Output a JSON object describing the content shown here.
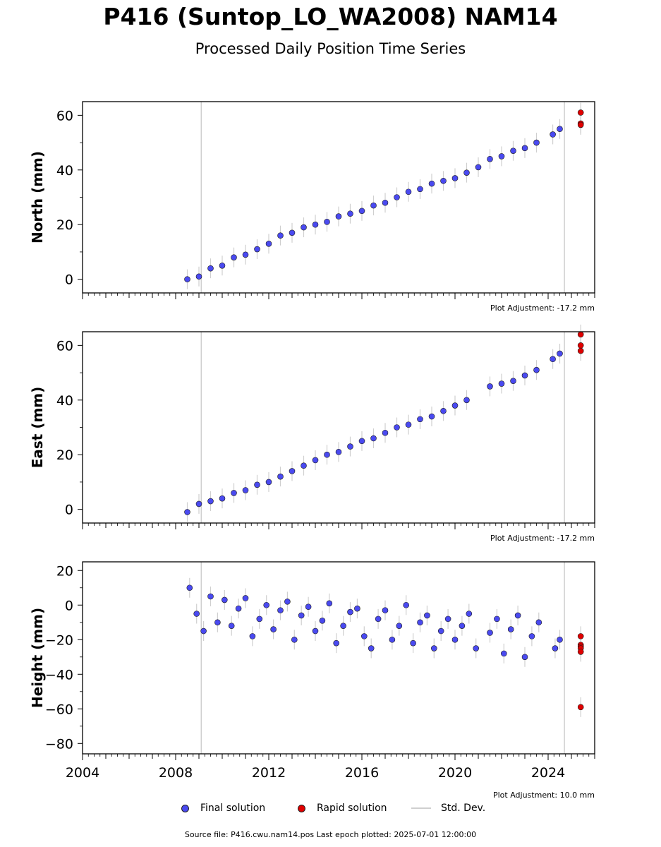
{
  "title": "P416 (Suntop_LO_WA2008) NAM14",
  "subtitle": "Processed Daily Position Time Series",
  "legend": {
    "final_label": "Final solution",
    "rapid_label": "Rapid solution",
    "std_label": "Std. Dev.",
    "final_color": "#4a4af0",
    "rapid_color": "#e00000",
    "std_color": "#cfcfcf"
  },
  "footer": "Source file: P416.cwu.nam14.pos  Last epoch plotted: 2025-07-01 12:00:00",
  "chart_data": [
    {
      "type": "scatter",
      "ylabel": "North (mm)",
      "xlim": [
        2004,
        2026
      ],
      "ylim": [
        -5,
        65
      ],
      "yticks": [
        0,
        20,
        40,
        60
      ],
      "xticks": [
        2004,
        2008,
        2012,
        2016,
        2020,
        2024
      ],
      "show_xticklabels": false,
      "adjustment": "Plot Adjustment: -17.2 mm",
      "series": [
        {
          "name": "Final solution",
          "x": [
            2008.5,
            2009.0,
            2009.5,
            2010.0,
            2010.5,
            2011.0,
            2011.5,
            2012.0,
            2012.5,
            2013.0,
            2013.5,
            2014.0,
            2014.5,
            2015.0,
            2015.5,
            2016.0,
            2016.5,
            2017.0,
            2017.5,
            2018.0,
            2018.5,
            2019.0,
            2019.5,
            2020.0,
            2020.5,
            2021.0,
            2021.5,
            2022.0,
            2022.5,
            2023.0,
            2023.5,
            2024.2,
            2024.5
          ],
          "y": [
            0,
            1,
            4,
            5,
            8,
            9,
            11,
            13,
            16,
            17,
            19,
            20,
            21,
            23,
            24,
            25,
            27,
            28,
            30,
            32,
            33,
            35,
            36,
            37,
            39,
            41,
            44,
            45,
            47,
            48,
            50,
            53,
            55
          ]
        },
        {
          "name": "Rapid solution",
          "x": [
            2025.4,
            2025.4,
            2025.4
          ],
          "y": [
            61,
            57,
            56.5
          ]
        }
      ]
    },
    {
      "type": "scatter",
      "ylabel": "East (mm)",
      "xlim": [
        2004,
        2026
      ],
      "ylim": [
        -5,
        65
      ],
      "yticks": [
        0,
        20,
        40,
        60
      ],
      "xticks": [
        2004,
        2008,
        2012,
        2016,
        2020,
        2024
      ],
      "show_xticklabels": false,
      "adjustment": "Plot Adjustment: -17.2 mm",
      "series": [
        {
          "name": "Final solution",
          "x": [
            2008.5,
            2009.0,
            2009.5,
            2010.0,
            2010.5,
            2011.0,
            2011.5,
            2012.0,
            2012.5,
            2013.0,
            2013.5,
            2014.0,
            2014.5,
            2015.0,
            2015.5,
            2016.0,
            2016.5,
            2017.0,
            2017.5,
            2018.0,
            2018.5,
            2019.0,
            2019.5,
            2020.0,
            2020.5,
            2021.5,
            2022.0,
            2022.5,
            2023.0,
            2023.5,
            2024.2,
            2024.5
          ],
          "y": [
            -1,
            2,
            3,
            4,
            6,
            7,
            9,
            10,
            12,
            14,
            16,
            18,
            20,
            21,
            23,
            25,
            26,
            28,
            30,
            31,
            33,
            34,
            36,
            38,
            40,
            45,
            46,
            47,
            49,
            51,
            55,
            57
          ]
        },
        {
          "name": "Rapid solution",
          "x": [
            2025.4,
            2025.4,
            2025.4
          ],
          "y": [
            64,
            60,
            58
          ]
        }
      ]
    },
    {
      "type": "scatter",
      "ylabel": "Height (mm)",
      "xlim": [
        2004,
        2026
      ],
      "ylim": [
        -86,
        25
      ],
      "yticks": [
        -80,
        -60,
        -40,
        -20,
        0,
        20
      ],
      "xticks": [
        2004,
        2008,
        2012,
        2016,
        2020,
        2024
      ],
      "show_xticklabels": true,
      "adjustment": "Plot Adjustment: 10.0 mm",
      "series": [
        {
          "name": "Final solution",
          "x": [
            2008.6,
            2008.9,
            2009.2,
            2009.5,
            2009.8,
            2010.1,
            2010.4,
            2010.7,
            2011.0,
            2011.3,
            2011.6,
            2011.9,
            2012.2,
            2012.5,
            2012.8,
            2013.1,
            2013.4,
            2013.7,
            2014.0,
            2014.3,
            2014.6,
            2014.9,
            2015.2,
            2015.5,
            2015.8,
            2016.1,
            2016.4,
            2016.7,
            2017.0,
            2017.3,
            2017.6,
            2017.9,
            2018.2,
            2018.5,
            2018.8,
            2019.1,
            2019.4,
            2019.7,
            2020.0,
            2020.3,
            2020.6,
            2020.9,
            2021.5,
            2021.8,
            2022.1,
            2022.4,
            2022.7,
            2023.0,
            2023.3,
            2023.6,
            2024.3,
            2024.5
          ],
          "y": [
            10,
            -5,
            -15,
            5,
            -10,
            3,
            -12,
            -2,
            4,
            -18,
            -8,
            0,
            -14,
            -3,
            2,
            -20,
            -6,
            -1,
            -15,
            -9,
            1,
            -22,
            -12,
            -4,
            -2,
            -18,
            -25,
            -8,
            -3,
            -20,
            -12,
            0,
            -22,
            -10,
            -6,
            -25,
            -15,
            -8,
            -20,
            -12,
            -5,
            -25,
            -16,
            -8,
            -28,
            -14,
            -6,
            -30,
            -18,
            -10,
            -25,
            -20
          ]
        },
        {
          "name": "Rapid solution",
          "x": [
            2025.4,
            2025.4,
            2025.4,
            2025.4,
            2025.4,
            2025.4
          ],
          "y": [
            -18,
            -23,
            -24,
            -25,
            -27,
            -59
          ]
        }
      ]
    }
  ]
}
